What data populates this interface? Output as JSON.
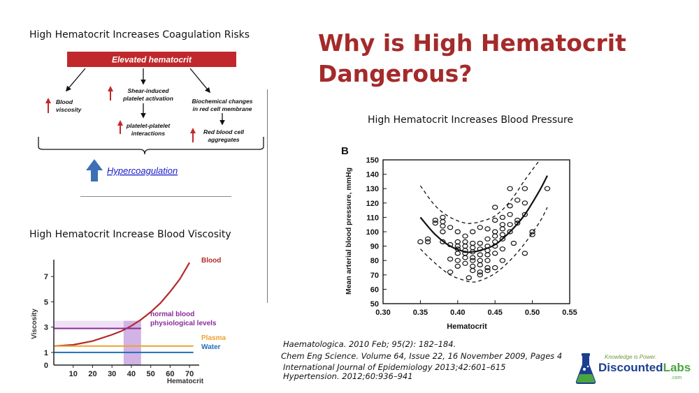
{
  "headings": {
    "coag": "High Hematocrit Increases Coagulation Risks",
    "viscosity": "High Hematocrit Increase Blood Viscosity",
    "pressure": "High Hematocrit  Increases Blood Pressure"
  },
  "title_line1": "Why is High Hematocrit",
  "title_line2": "Dangerous?",
  "diagram": {
    "top_box": "Elevated hematocrit",
    "blood_viscosity": [
      "Blood",
      "viscosity"
    ],
    "shear": [
      "Shear-induced",
      "platelet activation"
    ],
    "platelet": [
      "platelet-platelet",
      "interactions"
    ],
    "biochem": [
      "Biochemical changes",
      "in red cell membrane"
    ],
    "rbc": [
      "Red blood cell",
      "aggregates"
    ],
    "hyper": "Hypercoagulation",
    "colors": {
      "box": "#c0282b",
      "arrow_up": "#c0282b",
      "big_arrow": "#3d6fb5",
      "link": "#1a1ac8"
    }
  },
  "viscosity_chart": {
    "type": "line",
    "ylabel": "Viscosity",
    "xlabel": "Hematocrit",
    "yticks": [
      "7",
      "5",
      "3",
      "1",
      "0"
    ],
    "xticks": [
      "10",
      "20",
      "30",
      "40",
      "50",
      "60",
      "70"
    ],
    "xlim": [
      0,
      75
    ],
    "ylim": [
      0,
      8
    ],
    "series": [
      {
        "name": "Blood",
        "color": "#b22a2a",
        "x": [
          0,
          10,
          20,
          30,
          35,
          40,
          45,
          50,
          55,
          60,
          65,
          70
        ],
        "y": [
          1.5,
          1.6,
          1.9,
          2.4,
          2.7,
          3.1,
          3.6,
          4.2,
          4.9,
          5.8,
          6.8,
          8.1
        ]
      },
      {
        "name": "Plasma",
        "color": "#f0a030",
        "x": [
          0,
          72
        ],
        "y": [
          1.5,
          1.5
        ]
      },
      {
        "name": "Water",
        "color": "#1f6fb5",
        "x": [
          0,
          72
        ],
        "y": [
          1.0,
          1.0
        ]
      }
    ],
    "normal_label": [
      "normal blood",
      "physiological levels"
    ],
    "normal_range": {
      "x": [
        36,
        45
      ],
      "y": [
        0,
        3.5
      ]
    },
    "band_color": "#c9a6e0",
    "purple_line_color": "#8b2a9b"
  },
  "bp_chart": {
    "type": "scatter",
    "panel": "B",
    "xlabel": "Hematocrit",
    "ylabel": "Mean arterial blood pressure, mmHg",
    "xticks": [
      "0.30",
      "0.35",
      "0.40",
      "0.45",
      "0.50",
      "0.55"
    ],
    "yticks": [
      "50",
      "60",
      "70",
      "80",
      "90",
      "100",
      "110",
      "120",
      "130",
      "140",
      "150"
    ],
    "xlim": [
      0.3,
      0.55
    ],
    "ylim": [
      50,
      150
    ],
    "points": [
      [
        0.35,
        93
      ],
      [
        0.36,
        95
      ],
      [
        0.36,
        93
      ],
      [
        0.37,
        108
      ],
      [
        0.37,
        106
      ],
      [
        0.38,
        110
      ],
      [
        0.38,
        107
      ],
      [
        0.38,
        104
      ],
      [
        0.38,
        100
      ],
      [
        0.38,
        93
      ],
      [
        0.39,
        91
      ],
      [
        0.39,
        81
      ],
      [
        0.39,
        72
      ],
      [
        0.39,
        103
      ],
      [
        0.4,
        100
      ],
      [
        0.4,
        93
      ],
      [
        0.4,
        90
      ],
      [
        0.4,
        88
      ],
      [
        0.4,
        85
      ],
      [
        0.4,
        80
      ],
      [
        0.4,
        76
      ],
      [
        0.41,
        97
      ],
      [
        0.41,
        93
      ],
      [
        0.41,
        90
      ],
      [
        0.41,
        87
      ],
      [
        0.41,
        85
      ],
      [
        0.41,
        82
      ],
      [
        0.41,
        78
      ],
      [
        0.415,
        68
      ],
      [
        0.42,
        100
      ],
      [
        0.42,
        92
      ],
      [
        0.42,
        89
      ],
      [
        0.42,
        86
      ],
      [
        0.42,
        82
      ],
      [
        0.42,
        80
      ],
      [
        0.42,
        76
      ],
      [
        0.42,
        73
      ],
      [
        0.43,
        103
      ],
      [
        0.43,
        92
      ],
      [
        0.43,
        88
      ],
      [
        0.43,
        84
      ],
      [
        0.43,
        80
      ],
      [
        0.43,
        77
      ],
      [
        0.43,
        72
      ],
      [
        0.43,
        70
      ],
      [
        0.44,
        95
      ],
      [
        0.44,
        90
      ],
      [
        0.44,
        87
      ],
      [
        0.44,
        84
      ],
      [
        0.44,
        80
      ],
      [
        0.44,
        75
      ],
      [
        0.44,
        73
      ],
      [
        0.44,
        102
      ],
      [
        0.45,
        117
      ],
      [
        0.45,
        108
      ],
      [
        0.45,
        100
      ],
      [
        0.45,
        97
      ],
      [
        0.45,
        93
      ],
      [
        0.45,
        90
      ],
      [
        0.45,
        85
      ],
      [
        0.45,
        75
      ],
      [
        0.46,
        110
      ],
      [
        0.46,
        105
      ],
      [
        0.46,
        102
      ],
      [
        0.46,
        98
      ],
      [
        0.46,
        95
      ],
      [
        0.46,
        88
      ],
      [
        0.46,
        80
      ],
      [
        0.47,
        130
      ],
      [
        0.47,
        118
      ],
      [
        0.47,
        112
      ],
      [
        0.47,
        105
      ],
      [
        0.47,
        100
      ],
      [
        0.475,
        92
      ],
      [
        0.48,
        122
      ],
      [
        0.48,
        108
      ],
      [
        0.48,
        106
      ],
      [
        0.49,
        130
      ],
      [
        0.49,
        120
      ],
      [
        0.49,
        112
      ],
      [
        0.49,
        85
      ],
      [
        0.5,
        100
      ],
      [
        0.5,
        98
      ],
      [
        0.52,
        130
      ]
    ],
    "fit": {
      "x": [
        0.35,
        0.37,
        0.39,
        0.41,
        0.42,
        0.43,
        0.45,
        0.47,
        0.49,
        0.51,
        0.52
      ],
      "y": [
        110,
        98,
        90,
        86,
        86,
        87,
        91,
        100,
        112,
        129,
        139
      ]
    },
    "upper": {
      "x": [
        0.35,
        0.37,
        0.39,
        0.41,
        0.42,
        0.43,
        0.45,
        0.47,
        0.49,
        0.51
      ],
      "y": [
        132,
        118,
        110,
        106,
        106,
        107,
        111,
        121,
        136,
        150
      ]
    },
    "lower": {
      "x": [
        0.35,
        0.37,
        0.39,
        0.41,
        0.42,
        0.43,
        0.45,
        0.47,
        0.49,
        0.51,
        0.52
      ],
      "y": [
        88,
        78,
        70,
        66,
        65,
        66,
        71,
        80,
        92,
        107,
        117
      ]
    }
  },
  "references": [
    "Haematologica. 2010 Feb; 95(2): 182–184.",
    "Chem Eng Science. Volume 64, Issue 22, 16 November 2009, Pages 4",
    "International Journal of Epidemiology 2013;42:601–615",
    "Hypertension. 2012;60:936–941"
  ],
  "logo": {
    "tagline": "Knowledge is Power.",
    "name_part1": "Discounted",
    "name_part2": "Labs",
    "suffix": ".com",
    "colors": {
      "blue": "#1b3f8f",
      "green": "#4aa540",
      "tagline": "#6a9a3a"
    }
  }
}
